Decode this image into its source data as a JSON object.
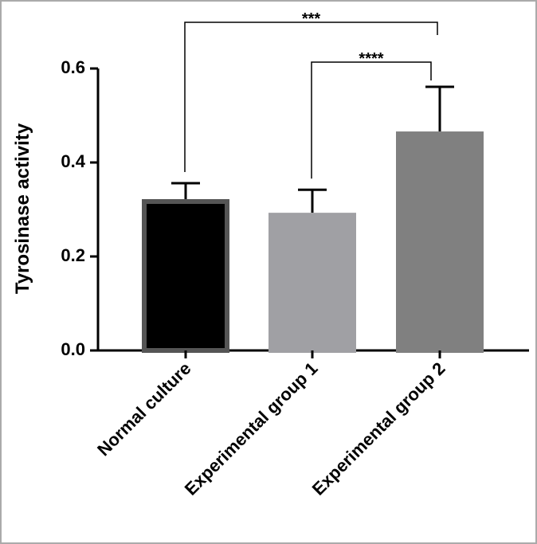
{
  "chart_data": {
    "type": "bar",
    "y_label": "Tyrosinase activity",
    "categories": [
      "Normal culture",
      "Experimental group 1",
      "Experimental group 2"
    ],
    "values": [
      0.322,
      0.293,
      0.466
    ],
    "errors": [
      0.034,
      0.049,
      0.095
    ],
    "colors": [
      "#000000",
      "#a0a0a4",
      "#808080"
    ],
    "edgecolors": [
      "#555555",
      "#a0a0a4",
      "#808080"
    ],
    "ylim": [
      0,
      0.6
    ],
    "yticks": [
      {
        "value": 0,
        "label": "0.0"
      },
      {
        "value": 0.2,
        "label": "0.2"
      },
      {
        "value": 0.4,
        "label": "0.4"
      },
      {
        "value": 0.6,
        "label": "0.6"
      }
    ],
    "annotations": [
      {
        "text": "***",
        "between": [
          0,
          2
        ]
      },
      {
        "text": "****",
        "between": [
          1,
          2
        ]
      }
    ]
  }
}
